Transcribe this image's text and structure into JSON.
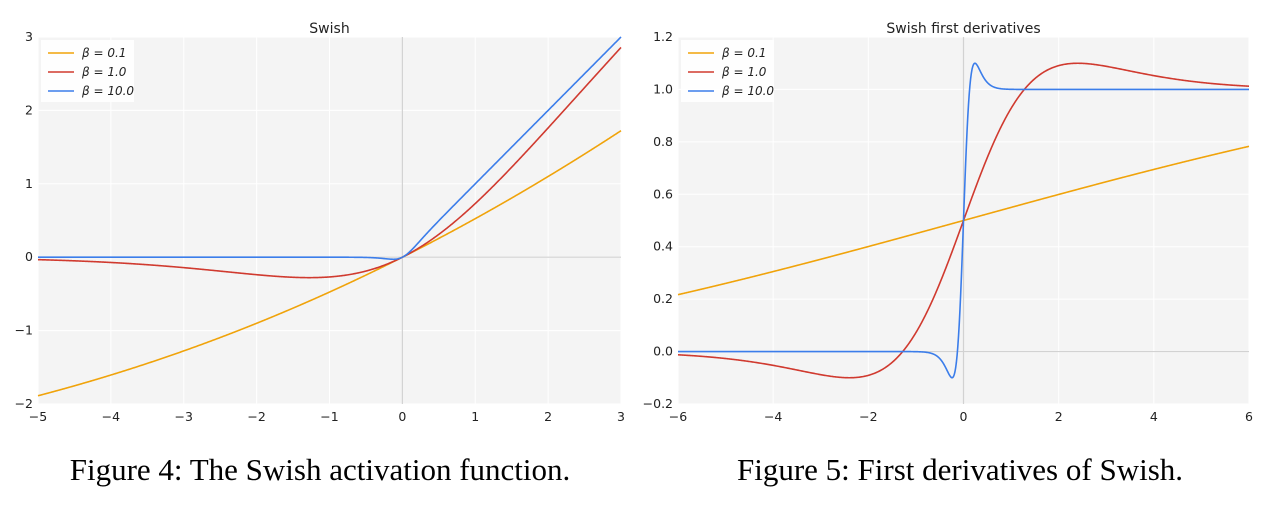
{
  "captions": {
    "left": "Figure 4: The Swish activation function.",
    "right": "Figure 5: First derivatives of Swish."
  },
  "chart_data": [
    {
      "type": "line",
      "title": "Swish",
      "function": "swish",
      "xlim": [
        -5,
        3
      ],
      "ylim": [
        -2,
        3
      ],
      "xticks": [
        -5,
        -4,
        -3,
        -2,
        -1,
        0,
        1,
        2,
        3
      ],
      "yticks": [
        -2,
        -1,
        0,
        1,
        2,
        3
      ],
      "xtick_labels": [
        "−5",
        "−4",
        "−3",
        "−2",
        "−1",
        "0",
        "1",
        "2",
        "3"
      ],
      "ytick_labels": [
        "−2",
        "−1",
        "0",
        "1",
        "2",
        "3"
      ],
      "grid": true,
      "legend": "top-left",
      "series": [
        {
          "name": "β = 0.1",
          "beta": 0.1,
          "color": "#f0a30a"
        },
        {
          "name": "β = 1.0",
          "beta": 1.0,
          "color": "#d03a2f"
        },
        {
          "name": "β = 10.0",
          "beta": 10.0,
          "color": "#3b7dea"
        }
      ]
    },
    {
      "type": "line",
      "title": "Swish first derivatives",
      "function": "swish_derivative",
      "xlim": [
        -6,
        6
      ],
      "ylim": [
        -0.2,
        1.2
      ],
      "xticks": [
        -6,
        -4,
        -2,
        0,
        2,
        4,
        6
      ],
      "yticks": [
        -0.2,
        0.0,
        0.2,
        0.4,
        0.6,
        0.8,
        1.0,
        1.2
      ],
      "xtick_labels": [
        "−6",
        "−4",
        "−2",
        "0",
        "2",
        "4",
        "6"
      ],
      "ytick_labels": [
        "−0.2",
        "0.0",
        "0.2",
        "0.4",
        "0.6",
        "0.8",
        "1.0",
        "1.2"
      ],
      "grid": true,
      "legend": "top-left",
      "series": [
        {
          "name": "β = 0.1",
          "beta": 0.1,
          "color": "#f0a30a"
        },
        {
          "name": "β = 1.0",
          "beta": 1.0,
          "color": "#d03a2f"
        },
        {
          "name": "β = 10.0",
          "beta": 10.0,
          "color": "#3b7dea"
        }
      ]
    }
  ]
}
